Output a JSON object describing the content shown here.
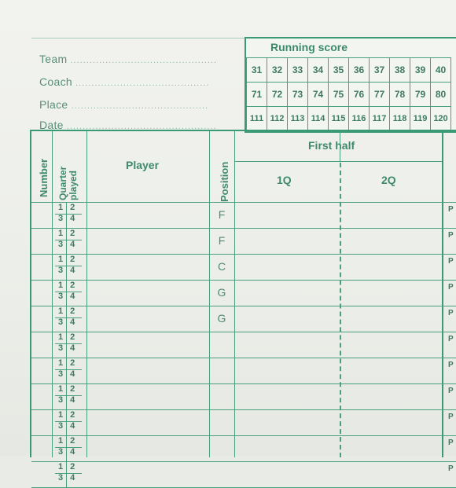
{
  "header": {
    "fields": [
      {
        "label": "Team"
      },
      {
        "label": "Coach"
      },
      {
        "label": "Place"
      },
      {
        "label": "Date"
      }
    ]
  },
  "running_score": {
    "title": "Running score",
    "rows": [
      [
        "31",
        "32",
        "33",
        "34",
        "35",
        "36",
        "37",
        "38",
        "39",
        "40"
      ],
      [
        "71",
        "72",
        "73",
        "74",
        "75",
        "76",
        "77",
        "78",
        "79",
        "80"
      ],
      [
        "111",
        "112",
        "113",
        "114",
        "115",
        "116",
        "117",
        "118",
        "119",
        "120"
      ]
    ]
  },
  "table": {
    "col_number": "Number",
    "col_quarter": "Quarter played",
    "col_player": "Player",
    "col_position": "Position",
    "first_half": "First half",
    "q1": "1Q",
    "q2": "2Q",
    "quarter_top": "1 2",
    "quarter_bottom": "3 4",
    "positions": [
      "F",
      "F",
      "C",
      "G",
      "G",
      "",
      "",
      "",
      "",
      "",
      ""
    ],
    "period_mark": "P"
  }
}
